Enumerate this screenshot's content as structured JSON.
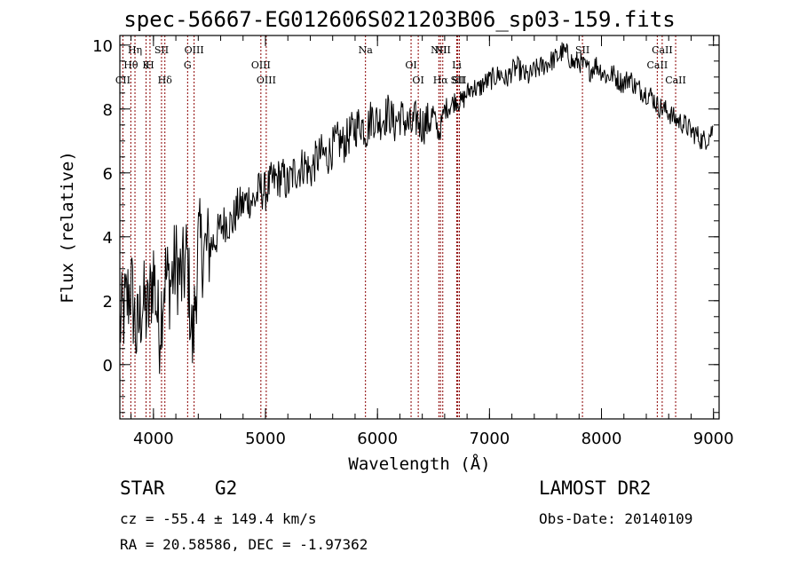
{
  "title": "spec-56667-EG012606S021203B06_sp03-159.fits",
  "footer": {
    "class": "STAR",
    "subclass": "G2",
    "survey": "LAMOST DR2",
    "cz": "cz = -55.4 ± 149.4 km/s",
    "obs_date": "Obs-Date: 20140109",
    "radec": "RA =  20.58586, DEC =  -1.97362"
  },
  "colors": {
    "spectrum": "#000000",
    "line_marker": "#8b0000",
    "axes": "#000000"
  },
  "chart_data": {
    "type": "line",
    "title": "spec-56667-EG012606S021203B06_sp03-159.fits",
    "xlabel": "Wavelength (Å)",
    "ylabel": "Flux (relative)",
    "xlim": [
      3700,
      9050
    ],
    "ylim": [
      -1.7,
      10.3
    ],
    "xticks": [
      4000,
      5000,
      6000,
      7000,
      8000,
      9000
    ],
    "yticks": [
      0,
      2,
      4,
      6,
      8,
      10
    ],
    "grid": false,
    "series": [
      {
        "x": [
          3700,
          3750,
          3800,
          3850,
          3900,
          3950,
          4000,
          4050,
          4100,
          4150,
          4200,
          4250,
          4300,
          4350,
          4400,
          4450,
          4500,
          4550,
          4600,
          4650,
          4700,
          4750,
          4800,
          4850,
          4900,
          4950,
          5000,
          5050,
          5100,
          5150,
          5200,
          5250,
          5300,
          5350,
          5400,
          5450,
          5500,
          5550,
          5600,
          5650,
          5700,
          5750,
          5800,
          5850,
          5900,
          5950,
          6000,
          6050,
          6100,
          6150,
          6200,
          6250,
          6300,
          6350,
          6400,
          6450,
          6500,
          6550,
          6600,
          6650,
          6700,
          6750,
          6800,
          6850,
          6900,
          6950,
          7000,
          7050,
          7100,
          7150,
          7200,
          7250,
          7300,
          7350,
          7400,
          7450,
          7500,
          7550,
          7600,
          7650,
          7700,
          7750,
          7800,
          7850,
          7900,
          7950,
          8000,
          8050,
          8100,
          8150,
          8200,
          8250,
          8300,
          8350,
          8400,
          8450,
          8500,
          8550,
          8600,
          8650,
          8700,
          8750,
          8800,
          8850,
          8900,
          8950,
          9000
        ],
        "y": [
          1.2,
          1.8,
          2.5,
          0.8,
          2.0,
          1.5,
          3.0,
          1.0,
          2.8,
          2.5,
          3.2,
          2.6,
          3.4,
          0.5,
          3.8,
          3.5,
          3.7,
          3.9,
          4.3,
          4.5,
          4.4,
          4.9,
          5.0,
          5.2,
          5.1,
          5.5,
          5.4,
          5.7,
          5.8,
          5.9,
          5.6,
          6.0,
          6.1,
          6.3,
          6.0,
          6.4,
          6.6,
          6.5,
          6.8,
          7.0,
          6.9,
          7.2,
          7.4,
          7.6,
          7.3,
          7.8,
          7.6,
          7.7,
          7.9,
          7.5,
          7.8,
          7.6,
          7.4,
          7.7,
          7.5,
          7.6,
          7.8,
          7.2,
          8.0,
          8.1,
          8.3,
          8.2,
          8.5,
          8.7,
          8.6,
          8.8,
          8.9,
          9.0,
          9.1,
          8.9,
          9.2,
          9.3,
          9.1,
          9.0,
          9.2,
          9.3,
          9.4,
          9.5,
          9.6,
          9.8,
          9.7,
          9.4,
          9.5,
          9.3,
          9.2,
          9.4,
          9.2,
          9.0,
          9.1,
          8.9,
          8.8,
          9.0,
          8.7,
          8.6,
          8.5,
          8.4,
          8.1,
          8.0,
          7.9,
          7.7,
          7.6,
          7.5,
          7.3,
          7.2,
          7.0,
          7.1,
          7.4
        ]
      }
    ],
    "lines": [
      {
        "label": "CII",
        "wave": 3727,
        "row": 3
      },
      {
        "label": "Hθ",
        "wave": 3798,
        "row": 2
      },
      {
        "label": "Hη",
        "wave": 3835,
        "row": 1
      },
      {
        "label": "K",
        "wave": 3934,
        "row": 2
      },
      {
        "label": "H",
        "wave": 3969,
        "row": 2
      },
      {
        "label": "SII",
        "wave": 4072,
        "row": 1
      },
      {
        "label": "Hδ",
        "wave": 4102,
        "row": 3
      },
      {
        "label": "OIII",
        "wave": 4363,
        "row": 1
      },
      {
        "label": "G",
        "wave": 4305,
        "row": 2
      },
      {
        "label": "OIII",
        "wave": 4959,
        "row": 2
      },
      {
        "label": "OIII",
        "wave": 5007,
        "row": 3
      },
      {
        "label": "Na",
        "wave": 5893,
        "row": 1
      },
      {
        "label": "OI",
        "wave": 6300,
        "row": 2
      },
      {
        "label": "OI",
        "wave": 6364,
        "row": 3
      },
      {
        "label": "NII",
        "wave": 6548,
        "row": 1
      },
      {
        "label": "Hα",
        "wave": 6563,
        "row": 3
      },
      {
        "label": "NII",
        "wave": 6583,
        "row": 1
      },
      {
        "label": "Li",
        "wave": 6708,
        "row": 2
      },
      {
        "label": "SII",
        "wave": 6717,
        "row": 3
      },
      {
        "label": "SII",
        "wave": 6731,
        "row": 3
      },
      {
        "label": "SII",
        "wave": 7830,
        "row": 1
      },
      {
        "label": "CaII",
        "wave": 8498,
        "row": 2
      },
      {
        "label": "CaII",
        "wave": 8542,
        "row": 1
      },
      {
        "label": "CaII",
        "wave": 8662,
        "row": 3
      }
    ]
  }
}
